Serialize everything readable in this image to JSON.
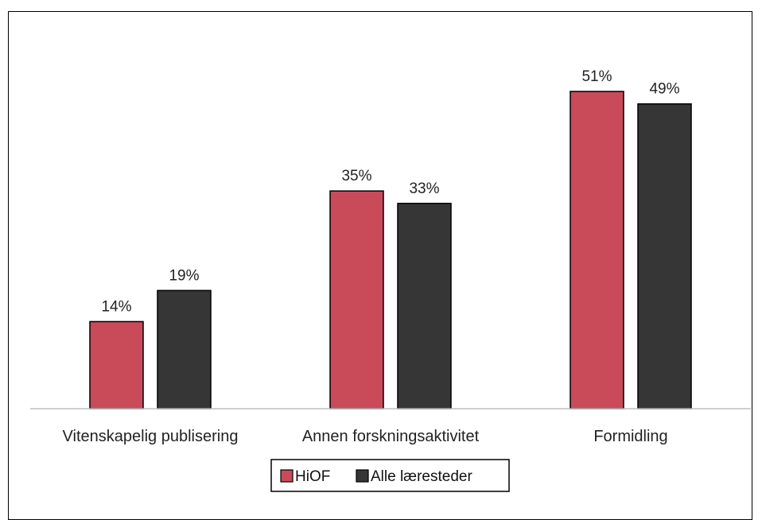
{
  "chart_data": {
    "type": "bar",
    "title": "",
    "xlabel": "",
    "ylabel": "",
    "categories": [
      "Vitenskapelig publisering",
      "Annen forskningsaktivitet",
      "Formidling"
    ],
    "series": [
      {
        "name": "HiOF",
        "values": [
          14,
          35,
          51
        ],
        "labels": [
          "14%",
          "35%",
          "51%"
        ],
        "color": "#c94a59"
      },
      {
        "name": "Alle læresteder",
        "values": [
          19,
          33,
          49
        ],
        "labels": [
          "19%",
          "33%",
          "49%"
        ],
        "color": "#363636"
      }
    ],
    "ylim": [
      0,
      60
    ],
    "unit": "%",
    "grid": false,
    "legend": "bottom"
  }
}
